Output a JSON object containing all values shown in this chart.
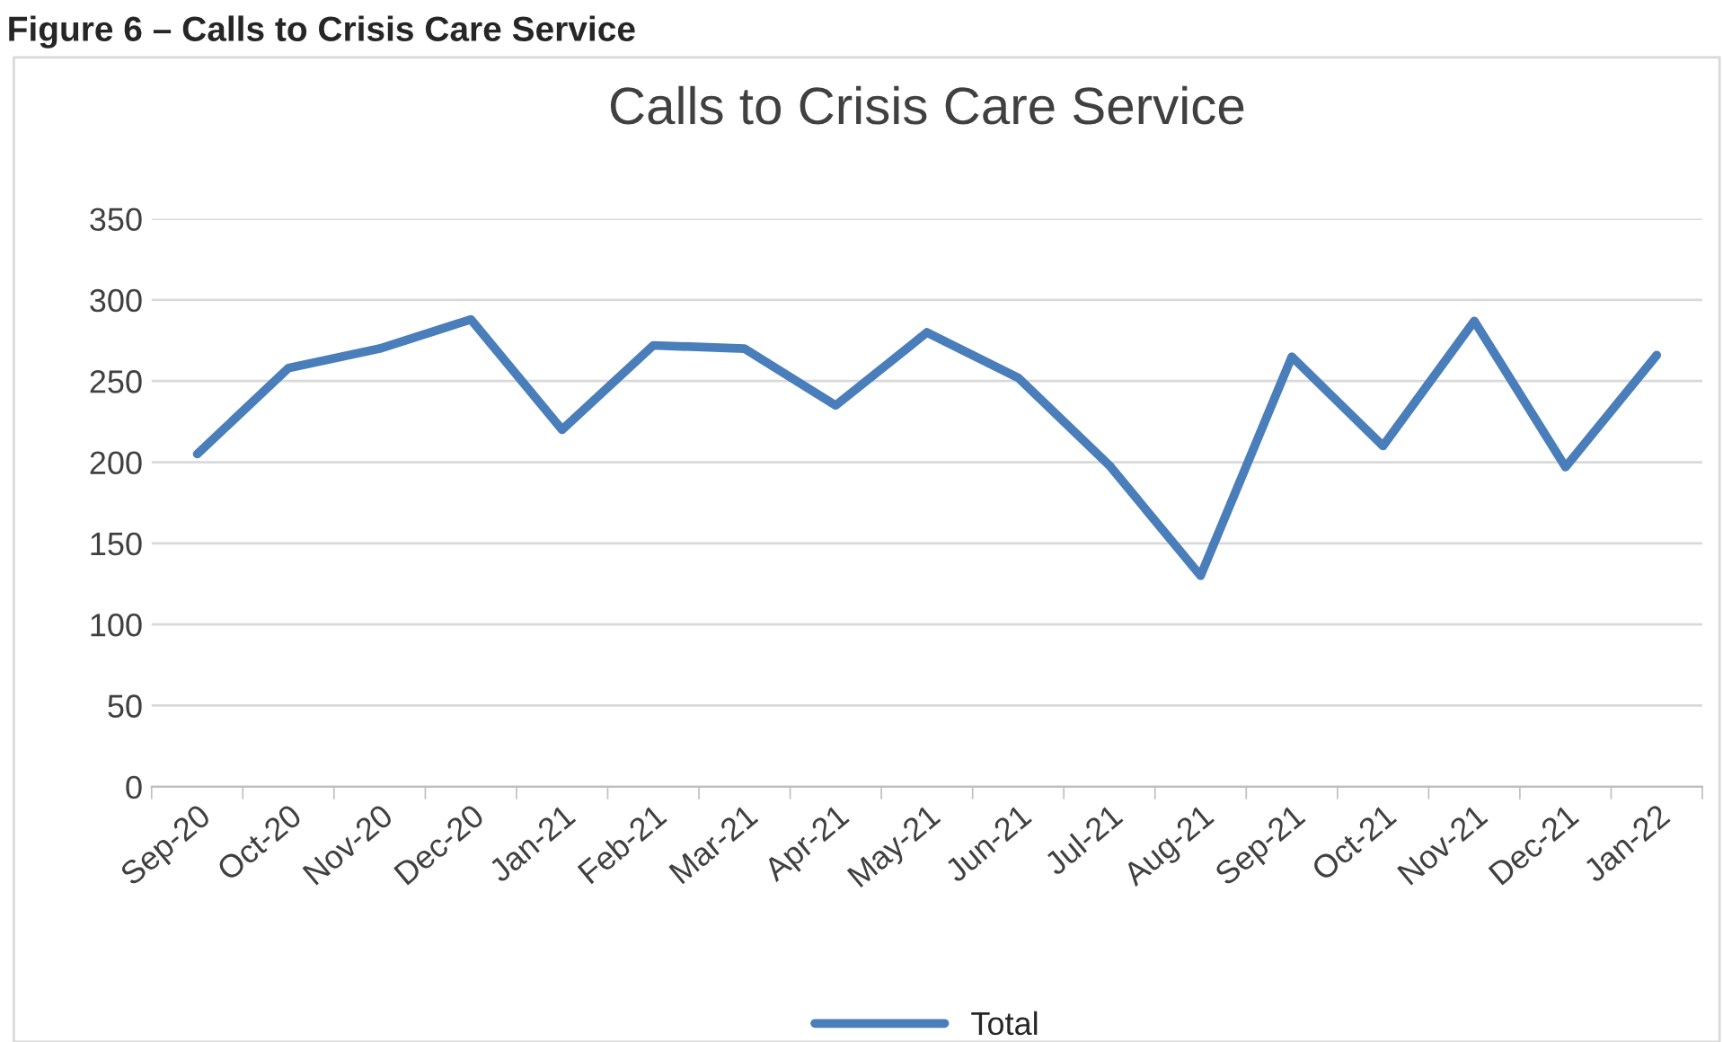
{
  "chart_data": {
    "type": "line",
    "title": "Calls to Crisis Care Service",
    "annotations": [
      "Figure 6 – Calls to Crisis Care Service"
    ],
    "categories": [
      "Sep-20",
      "Oct-20",
      "Nov-20",
      "Dec-20",
      "Jan-21",
      "Feb-21",
      "Mar-21",
      "Apr-21",
      "May-21",
      "Jun-21",
      "Jul-21",
      "Aug-21",
      "Sep-21",
      "Oct-21",
      "Nov-21",
      "Dec-21",
      "Jan-22"
    ],
    "series": [
      {
        "name": "Total",
        "color": "#4a7ebb",
        "values": [
          205,
          258,
          270,
          288,
          220,
          272,
          270,
          235,
          280,
          252,
          198,
          130,
          265,
          210,
          287,
          197,
          266
        ]
      }
    ],
    "ylim": [
      0,
      350
    ],
    "yticks": [
      0,
      50,
      100,
      150,
      200,
      250,
      300,
      350
    ],
    "grid": "y",
    "legend": "bottom",
    "marker": "none",
    "line_style": "solid"
  }
}
